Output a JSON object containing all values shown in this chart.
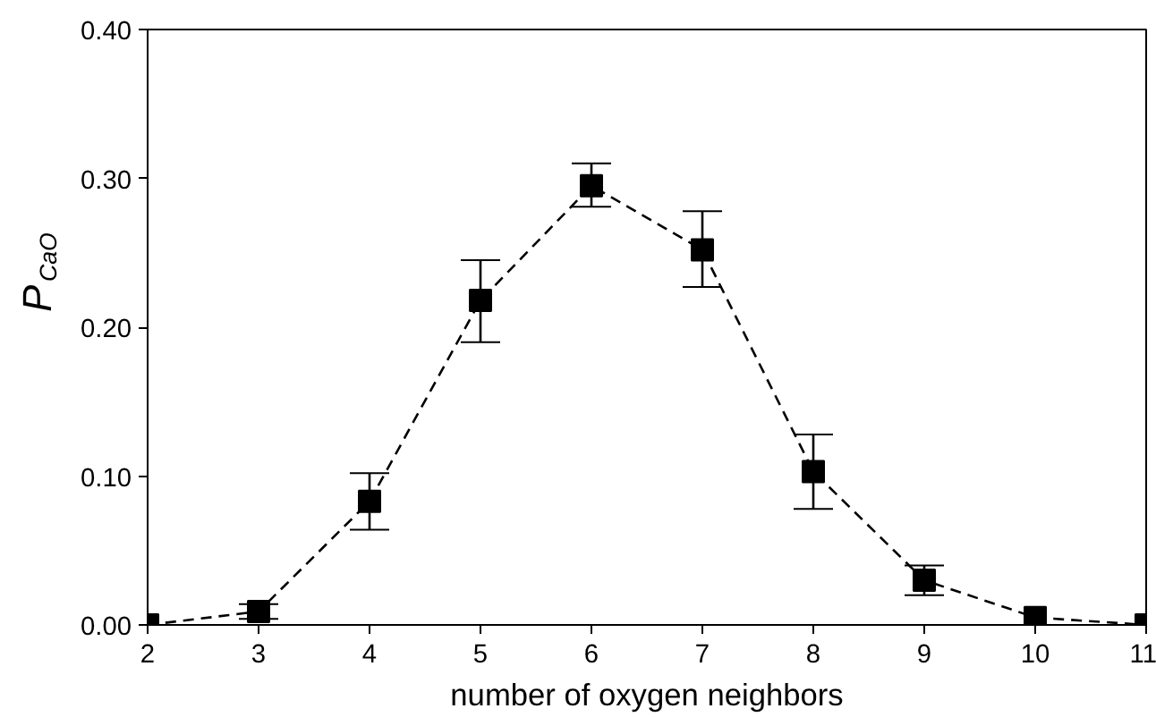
{
  "chart_data": {
    "type": "line",
    "xlabel": "number of oxygen neighbors",
    "ylabel": "P$_{CaO}$",
    "x": [
      2,
      3,
      4,
      5,
      6,
      7,
      8,
      9,
      10,
      11
    ],
    "series": [
      {
        "color": "#000000",
        "values": [
          0.0,
          0.009,
          0.083,
          0.218,
          0.295,
          0.252,
          0.103,
          0.03,
          0.005,
          0.0
        ],
        "errors": [
          null,
          [
            0.004,
            0.014
          ],
          [
            0.064,
            0.102
          ],
          [
            0.19,
            0.245
          ],
          [
            0.281,
            0.31
          ],
          [
            0.227,
            0.278
          ],
          [
            0.078,
            0.128
          ],
          [
            0.02,
            0.04
          ],
          null,
          null
        ]
      }
    ],
    "xlim": [
      2,
      11
    ],
    "xticks": [
      2,
      3,
      4,
      5,
      6,
      7,
      8,
      9,
      10,
      11
    ],
    "ylim": [
      0,
      0.4
    ],
    "yticks": [
      {
        "value": 0,
        "label": "0.00"
      },
      {
        "value": 0.1,
        "label": "0.10"
      },
      {
        "value": 0.2,
        "label": "0.20"
      },
      {
        "value": 0.3,
        "label": "0.30"
      },
      {
        "value": 0.4,
        "label": "0.40"
      }
    ],
    "grid": false,
    "marker": "square",
    "line_style": "dashed"
  }
}
